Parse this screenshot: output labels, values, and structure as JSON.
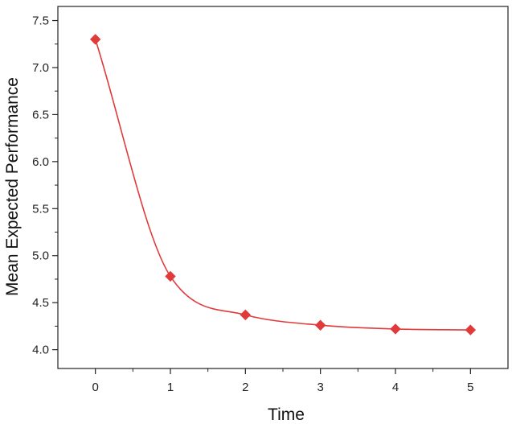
{
  "chart_data": {
    "type": "line",
    "title": "",
    "xlabel": "Time",
    "ylabel": "Mean Expected Performance",
    "x": [
      0,
      1,
      2,
      3,
      4,
      5
    ],
    "series": [
      {
        "name": "",
        "values": [
          7.3,
          4.78,
          4.37,
          4.26,
          4.22,
          4.21
        ]
      }
    ],
    "xlim": [
      -0.5,
      5.5
    ],
    "ylim": [
      3.8,
      7.65
    ],
    "xticks": [
      0,
      1,
      2,
      3,
      4,
      5
    ],
    "xtick_labels": [
      "0",
      "1",
      "2",
      "3",
      "4",
      "5"
    ],
    "yticks": [
      4.0,
      4.5,
      5.0,
      5.5,
      6.0,
      6.5,
      7.0,
      7.5
    ],
    "ytick_labels": [
      "4.0",
      "4.5",
      "5.0",
      "5.5",
      "6.0",
      "6.5",
      "7.0",
      "7.5"
    ],
    "grid": false,
    "marker": "diamond",
    "smooth": true,
    "line_color": "#e03a3a",
    "marker_color": "#e03a3a"
  }
}
